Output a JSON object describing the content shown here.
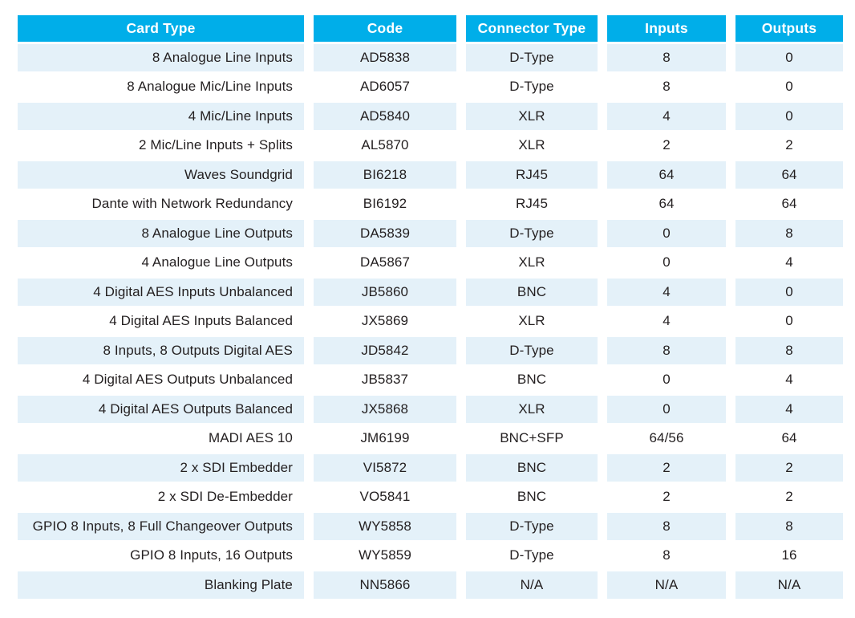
{
  "table": {
    "name": "io-cards-table",
    "columns": [
      {
        "key": "card_type",
        "label": "Card Type"
      },
      {
        "key": "code",
        "label": "Code"
      },
      {
        "key": "connector_type",
        "label": "Connector Type"
      },
      {
        "key": "inputs",
        "label": "Inputs"
      },
      {
        "key": "outputs",
        "label": "Outputs"
      }
    ],
    "rows": [
      [
        "8 Analogue Line Inputs",
        "AD5838",
        "D-Type",
        "8",
        "0"
      ],
      [
        "8 Analogue Mic/Line Inputs",
        "AD6057",
        "D-Type",
        "8",
        "0"
      ],
      [
        "4 Mic/Line Inputs",
        "AD5840",
        "XLR",
        "4",
        "0"
      ],
      [
        "2 Mic/Line Inputs + Splits",
        "AL5870",
        "XLR",
        "2",
        "2"
      ],
      [
        "Waves Soundgrid",
        "BI6218",
        "RJ45",
        "64",
        "64"
      ],
      [
        "Dante with Network Redundancy",
        "BI6192",
        "RJ45",
        "64",
        "64"
      ],
      [
        "8 Analogue Line Outputs",
        "DA5839",
        "D-Type",
        "0",
        "8"
      ],
      [
        "4 Analogue Line Outputs",
        "DA5867",
        "XLR",
        "0",
        "4"
      ],
      [
        "4 Digital AES Inputs Unbalanced",
        "JB5860",
        "BNC",
        "4",
        "0"
      ],
      [
        "4 Digital AES Inputs Balanced",
        "JX5869",
        "XLR",
        "4",
        "0"
      ],
      [
        "8 Inputs, 8 Outputs Digital AES",
        "JD5842",
        "D-Type",
        "8",
        "8"
      ],
      [
        "4 Digital AES Outputs Unbalanced",
        "JB5837",
        "BNC",
        "0",
        "4"
      ],
      [
        "4 Digital AES Outputs Balanced",
        "JX5868",
        "XLR",
        "0",
        "4"
      ],
      [
        "MADI AES 10",
        "JM6199",
        "BNC+SFP",
        "64/56",
        "64"
      ],
      [
        "2 x SDI Embedder",
        "VI5872",
        "BNC",
        "2",
        "2"
      ],
      [
        "2 x SDI De-Embedder",
        "VO5841",
        "BNC",
        "2",
        "2"
      ],
      [
        "GPIO 8 Inputs, 8 Full Changeover Outputs",
        "WY5858",
        "D-Type",
        "8",
        "8"
      ],
      [
        "GPIO 8 Inputs, 16 Outputs",
        "WY5859",
        "D-Type",
        "8",
        "16"
      ],
      [
        "Blanking Plate",
        "NN5866",
        "N/A",
        "N/A",
        "N/A"
      ]
    ]
  },
  "colors": {
    "header_bg": "#00AEE9",
    "header_text": "#FFFFFF",
    "row_alt_bg": "#E4F1F9",
    "row_bg": "#FFFFFF",
    "body_text": "#231F20"
  }
}
